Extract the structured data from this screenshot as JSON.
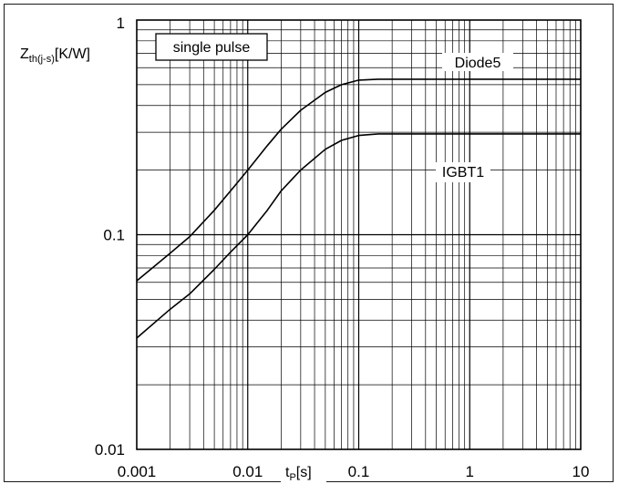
{
  "chart_data": {
    "type": "line",
    "x_scale": "log",
    "y_scale": "log",
    "xlim": [
      0.001,
      10
    ],
    "ylim": [
      0.01,
      1
    ],
    "grid": true,
    "legend_box_text": "single pulse",
    "ylabel": {
      "main": "Z",
      "sub": "th(j-s)",
      "unit": "[K/W]"
    },
    "xlabel": {
      "main": "t",
      "sub": "P",
      "unit": "[s]"
    },
    "x_ticks": [
      {
        "value": 0.001,
        "label": "0.001"
      },
      {
        "value": 0.01,
        "label": "0.01"
      },
      {
        "value": 0.1,
        "label": "0.1"
      },
      {
        "value": 1,
        "label": "1"
      },
      {
        "value": 10,
        "label": "10"
      }
    ],
    "y_ticks": [
      {
        "value": 0.01,
        "label": "0.01"
      },
      {
        "value": 0.1,
        "label": "0.1"
      },
      {
        "value": 1,
        "label": "1"
      }
    ],
    "series": [
      {
        "name": "Diode5",
        "color": "#000000",
        "x": [
          0.001,
          0.002,
          0.003,
          0.005,
          0.007,
          0.01,
          0.015,
          0.02,
          0.03,
          0.05,
          0.07,
          0.1,
          0.15,
          0.2,
          0.5,
          1,
          2,
          5,
          10
        ],
        "y": [
          0.061,
          0.082,
          0.098,
          0.13,
          0.16,
          0.2,
          0.26,
          0.31,
          0.38,
          0.46,
          0.5,
          0.525,
          0.53,
          0.53,
          0.53,
          0.53,
          0.53,
          0.53,
          0.53
        ]
      },
      {
        "name": "IGBT1",
        "color": "#000000",
        "x": [
          0.001,
          0.002,
          0.003,
          0.005,
          0.007,
          0.01,
          0.015,
          0.02,
          0.03,
          0.05,
          0.07,
          0.1,
          0.15,
          0.2,
          0.5,
          1,
          2,
          5,
          10
        ],
        "y": [
          0.033,
          0.045,
          0.053,
          0.069,
          0.083,
          0.1,
          0.13,
          0.16,
          0.2,
          0.25,
          0.275,
          0.29,
          0.295,
          0.295,
          0.295,
          0.295,
          0.295,
          0.295,
          0.295
        ]
      }
    ]
  }
}
